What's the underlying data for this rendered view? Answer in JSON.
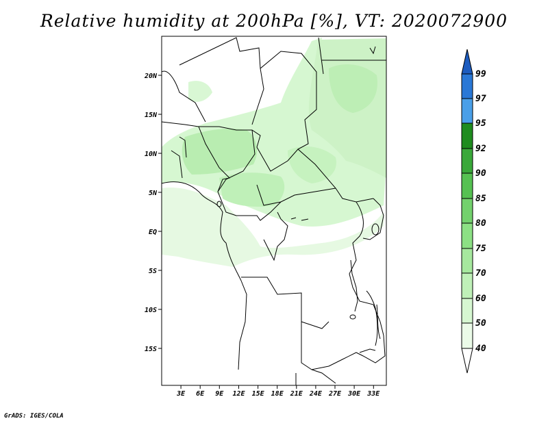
{
  "title": "Relative humidity at 200hPa [%], VT: 2020072900",
  "credit": "GrADS: IGES/COLA",
  "map": {
    "lon_range": [
      0,
      35
    ],
    "lat_range": [
      -20,
      24.5
    ],
    "lon_ticks": [
      "3E",
      "6E",
      "9E",
      "12E",
      "15E",
      "18E",
      "21E",
      "24E",
      "27E",
      "30E",
      "33E"
    ],
    "lat_ticks": [
      "20N",
      "15N",
      "10N",
      "5N",
      "EQ",
      "5S",
      "10S",
      "15S"
    ]
  },
  "colorbar": {
    "levels": [
      "40",
      "50",
      "60",
      "70",
      "75",
      "80",
      "85",
      "90",
      "92",
      "95",
      "97",
      "99"
    ],
    "colors": [
      "#ffffff",
      "#ebfbe8",
      "#d6f7d1",
      "#bff0b8",
      "#a6e89e",
      "#8ce084",
      "#73d16d",
      "#56c152",
      "#3aa83a",
      "#1f8c1f",
      "#4a9fe8",
      "#2a78d6",
      "#1d5cbf"
    ]
  }
}
